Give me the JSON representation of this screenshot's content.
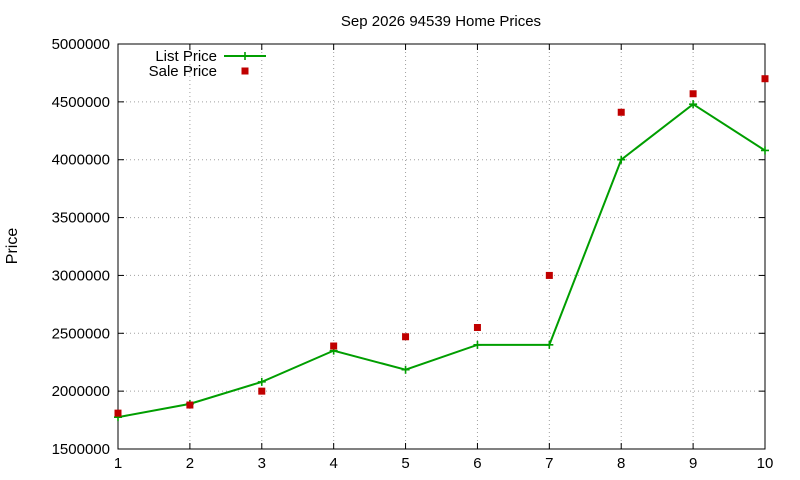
{
  "chart_data": {
    "type": "line",
    "title": "Sep 2026 94539 Home Prices",
    "xlabel": "",
    "ylabel": "Price",
    "x": [
      1,
      2,
      3,
      4,
      5,
      6,
      7,
      8,
      9,
      10
    ],
    "xlim": [
      1,
      10
    ],
    "ylim": [
      1500000,
      5000000
    ],
    "x_ticks": [
      1,
      2,
      3,
      4,
      5,
      6,
      7,
      8,
      9,
      10
    ],
    "y_ticks": [
      1500000,
      2000000,
      2500000,
      3000000,
      3500000,
      4000000,
      4500000,
      5000000
    ],
    "grid": true,
    "legend_position": "top-left",
    "series": [
      {
        "name": "List Price",
        "style": "line-with-plus-markers",
        "color": "#009e00",
        "values": [
          1775000,
          1890000,
          2080000,
          2350000,
          2185000,
          2400000,
          2400000,
          4000000,
          4480000,
          4080000
        ]
      },
      {
        "name": "Sale Price",
        "style": "square-markers",
        "color": "#c00000",
        "values": [
          1810000,
          1880000,
          2000000,
          2390000,
          2470000,
          2550000,
          3000000,
          4410000,
          4570000,
          4700000
        ]
      }
    ]
  }
}
